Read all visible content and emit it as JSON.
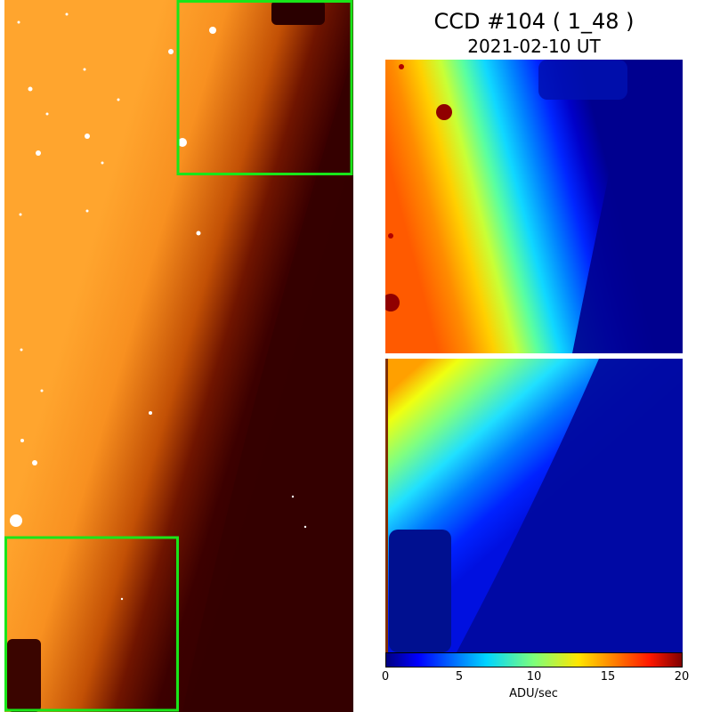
{
  "header": {
    "title": "CCD #104 ( 1_48 )",
    "date": "2021-02-10 UT"
  },
  "colorbar": {
    "label": "ADU/sec",
    "ticks": [
      "0",
      "5",
      "10",
      "15",
      "20"
    ],
    "range": [
      0,
      20
    ]
  },
  "colors": {
    "highlight_box": "#19e619",
    "hot_bright": "#ffa52e",
    "hot_dark": "#340000"
  },
  "panels": {
    "left": "full-ccd-hot-colormap-image",
    "top_right": "top-right-zoom-jet-colormap",
    "bottom_right": "bottom-left-zoom-jet-colormap"
  }
}
